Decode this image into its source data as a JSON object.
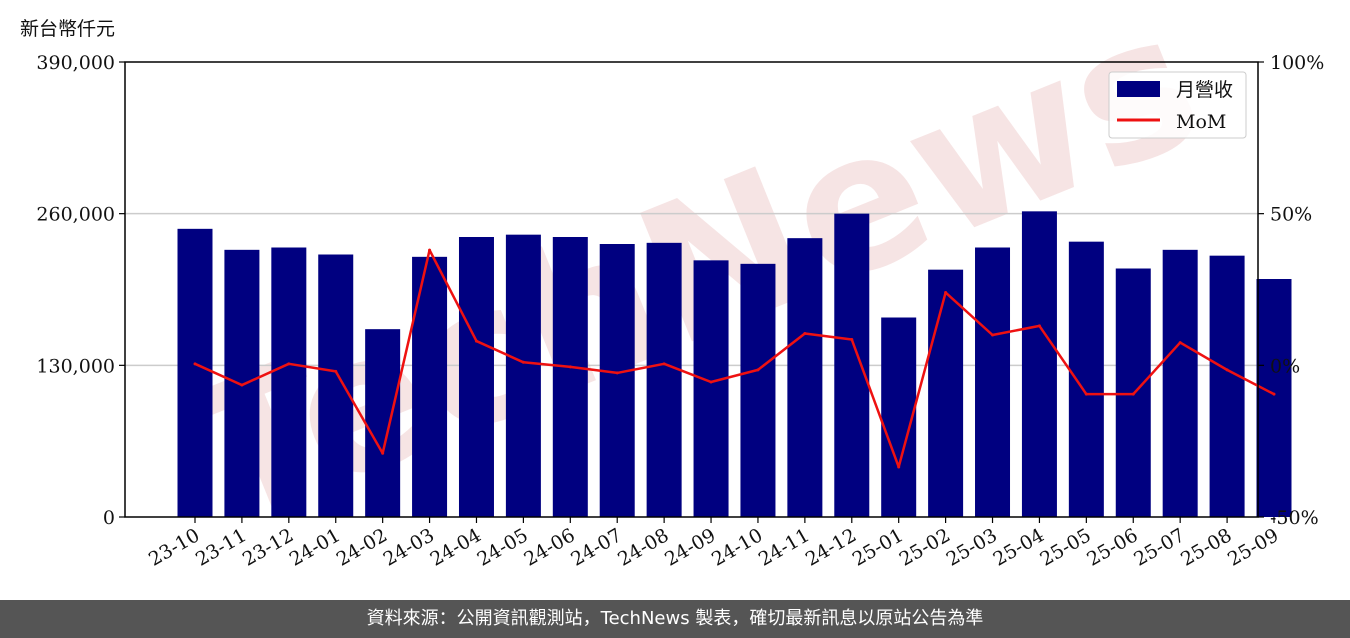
{
  "unit_label": "新台幣仟元",
  "footer": "資料來源：公開資訊觀測站，TechNews 製表，確切最新訊息以原站公告為準",
  "watermark": "TechNews",
  "colors": {
    "bar": "#000080",
    "line": "#ee1111",
    "grid": "#cccccc",
    "footer_bg": "#555555"
  },
  "chart_data": {
    "type": "bar",
    "categories": [
      "23-10",
      "23-11",
      "23-12",
      "24-01",
      "24-02",
      "24-03",
      "24-04",
      "24-05",
      "24-06",
      "24-07",
      "24-08",
      "24-09",
      "24-10",
      "24-11",
      "24-12",
      "25-01",
      "25-02",
      "25-03",
      "25-04",
      "25-05",
      "25-06",
      "25-07",
      "25-08",
      "25-09"
    ],
    "series": [
      {
        "name": "月營收",
        "type": "bar",
        "axis": "left",
        "values": [
          247000,
          229000,
          231000,
          225000,
          161000,
          223000,
          240000,
          242000,
          240000,
          234000,
          235000,
          220000,
          217000,
          239000,
          260000,
          171000,
          212000,
          231000,
          262000,
          236000,
          213000,
          229000,
          224000,
          204000
        ]
      },
      {
        "name": "MoM",
        "type": "line",
        "axis": "right",
        "values": [
          0.5,
          -6.5,
          0.5,
          -2,
          -29,
          38,
          8,
          1,
          -0.5,
          -2.5,
          0.5,
          -5.5,
          -1.5,
          10.5,
          8.5,
          -33.5,
          24,
          10,
          13,
          -9.5,
          -9.5,
          7.5,
          -1.5,
          -9.5
        ]
      }
    ],
    "left_axis": {
      "min": 0,
      "max": 390000,
      "ticks": [
        0,
        130000,
        260000,
        390000
      ],
      "tick_labels": [
        "0",
        "130,000",
        "260,000",
        "390,000"
      ]
    },
    "right_axis": {
      "min": -50,
      "max": 100,
      "ticks": [
        -50,
        0,
        50,
        100
      ],
      "tick_labels": [
        "-50%",
        "0%",
        "50%",
        "100%"
      ]
    },
    "grid": "horizontal",
    "legend_position": "top-right"
  }
}
